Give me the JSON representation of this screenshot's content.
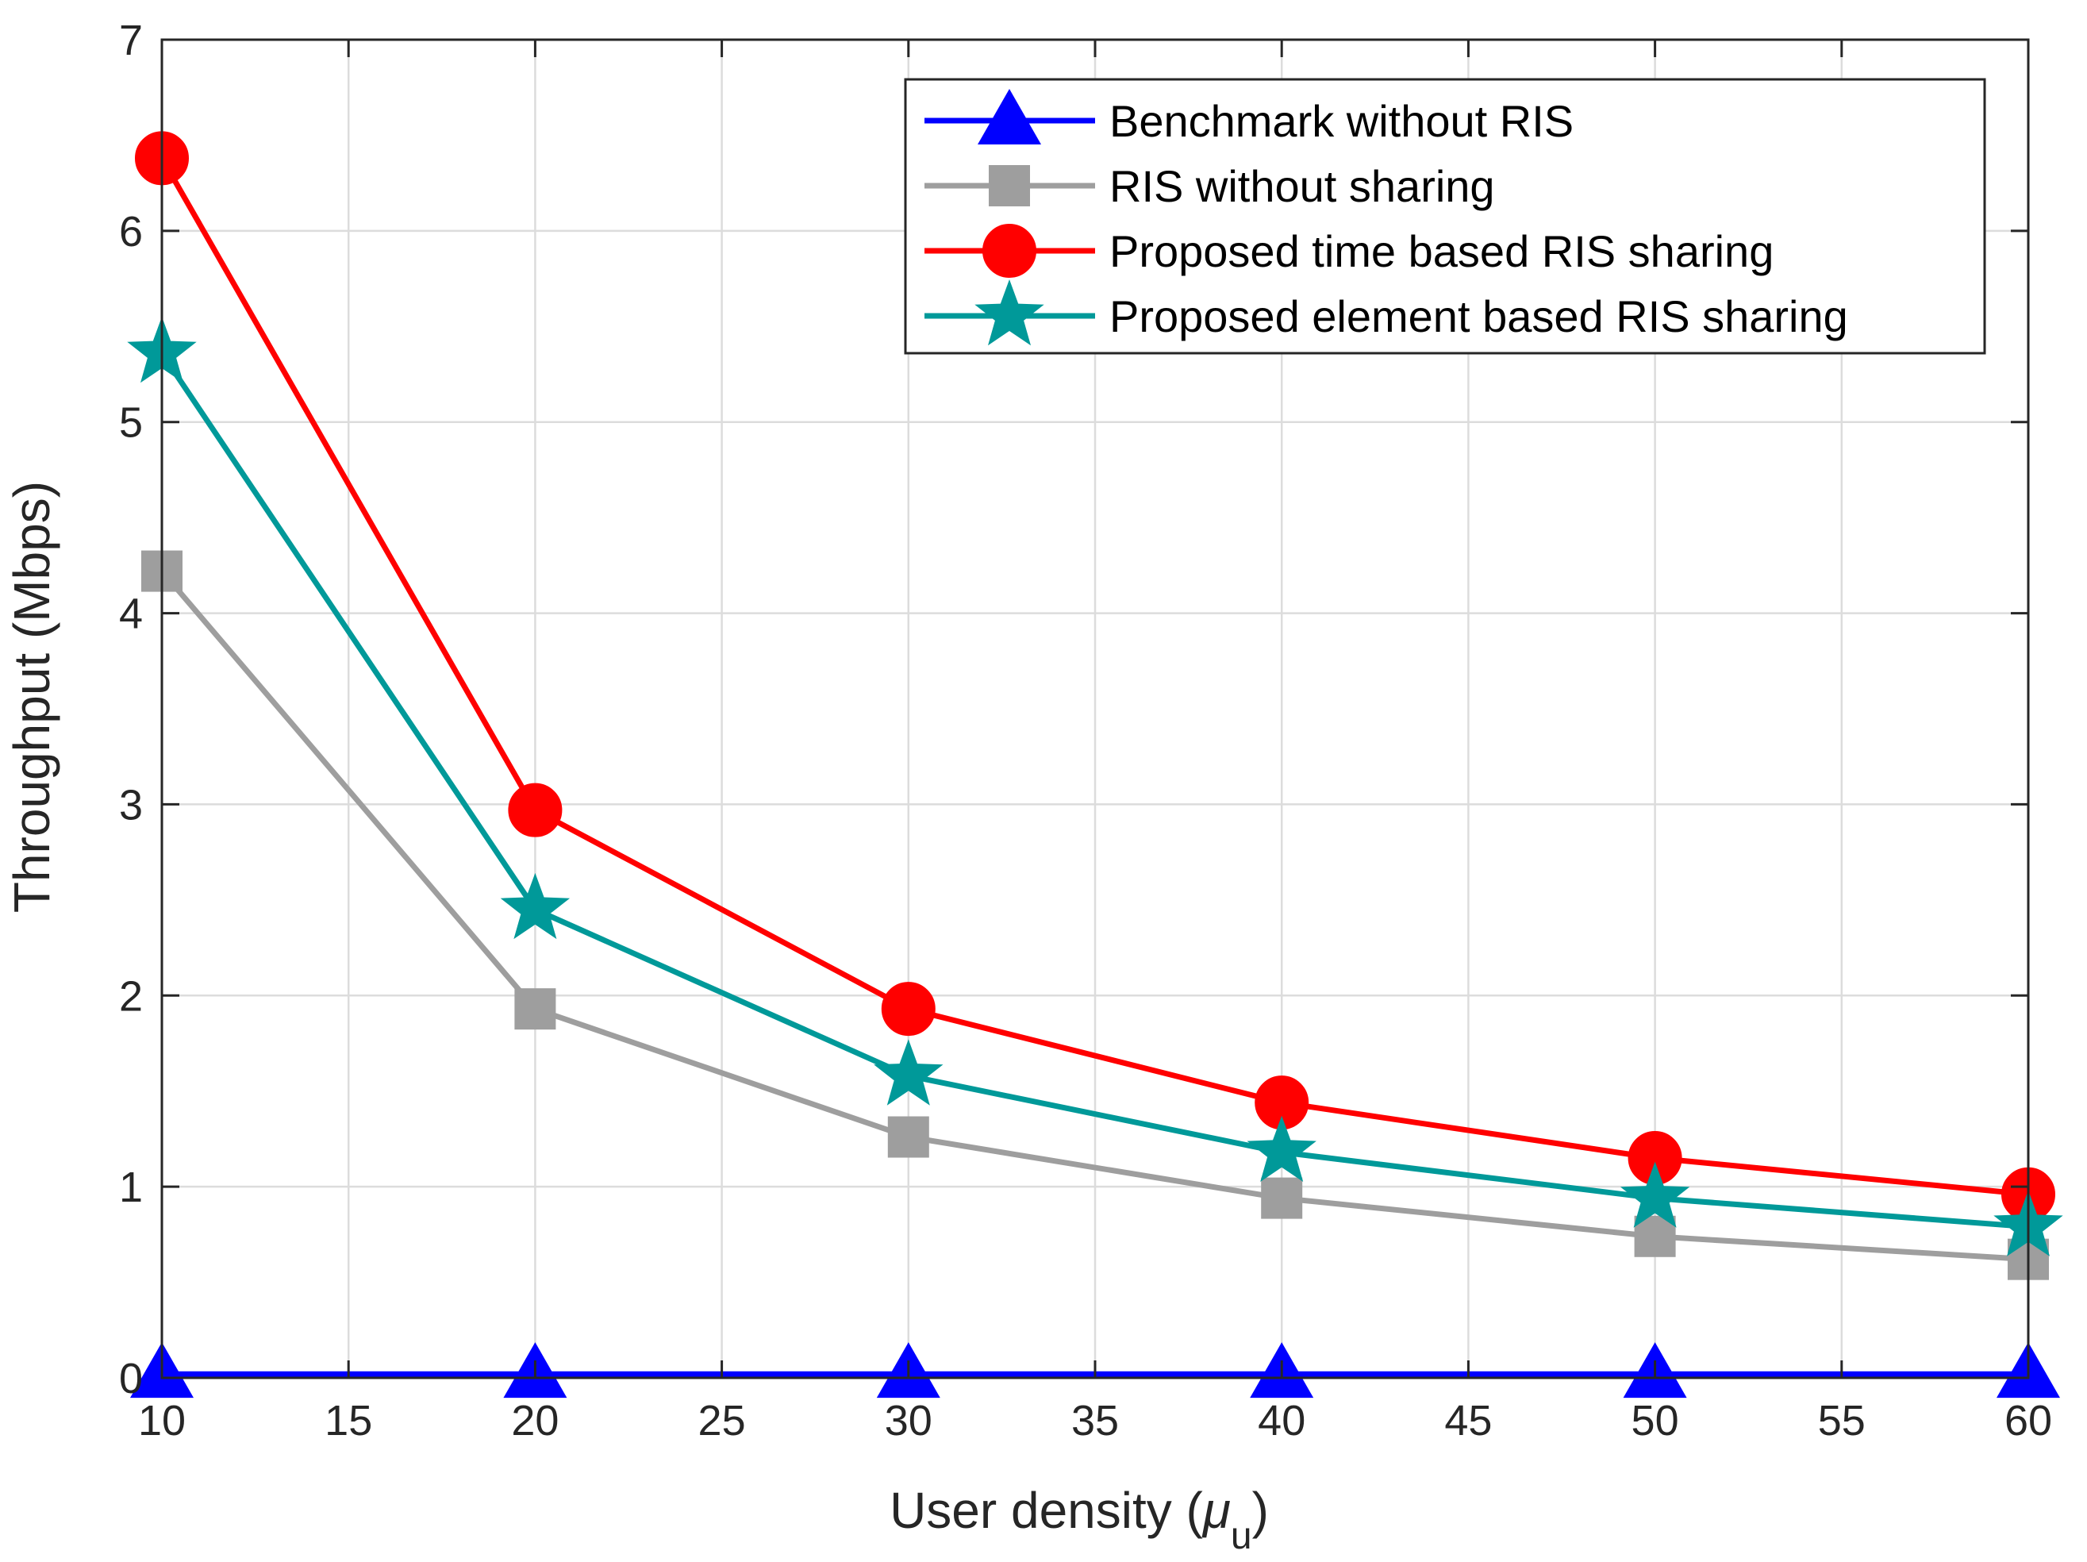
{
  "chart_data": {
    "type": "line",
    "title": "",
    "xlabel": "User density (",
    "xlabel_symbol": "μ",
    "xlabel_subscript": "u",
    "xlabel_close": ")",
    "ylabel": "Throughput (Mbps)",
    "x": [
      10,
      20,
      30,
      40,
      50,
      60
    ],
    "xlim": [
      10,
      60
    ],
    "ylim": [
      0,
      7
    ],
    "xticks": [
      "10",
      "15",
      "20",
      "25",
      "30",
      "35",
      "40",
      "45",
      "50",
      "55",
      "60"
    ],
    "yticks": [
      "0",
      "1",
      "2",
      "3",
      "4",
      "5",
      "6",
      "7"
    ],
    "grid": true,
    "legend_position": "top-right",
    "series": [
      {
        "name": "Benchmark without RIS",
        "color": "#0000ff",
        "marker": "triangle",
        "values": [
          0.02,
          0.02,
          0.02,
          0.02,
          0.02,
          0.02
        ]
      },
      {
        "name": "RIS without sharing",
        "color": "#9e9e9e",
        "marker": "square",
        "values": [
          4.22,
          1.93,
          1.26,
          0.94,
          0.74,
          0.62
        ]
      },
      {
        "name": "Proposed time based RIS sharing",
        "color": "#ff0000",
        "marker": "circle",
        "values": [
          6.38,
          2.97,
          1.93,
          1.44,
          1.15,
          0.96
        ]
      },
      {
        "name": "Proposed element based RIS sharing",
        "color": "#009999",
        "marker": "star",
        "values": [
          5.36,
          2.45,
          1.58,
          1.18,
          0.94,
          0.79
        ]
      }
    ]
  }
}
